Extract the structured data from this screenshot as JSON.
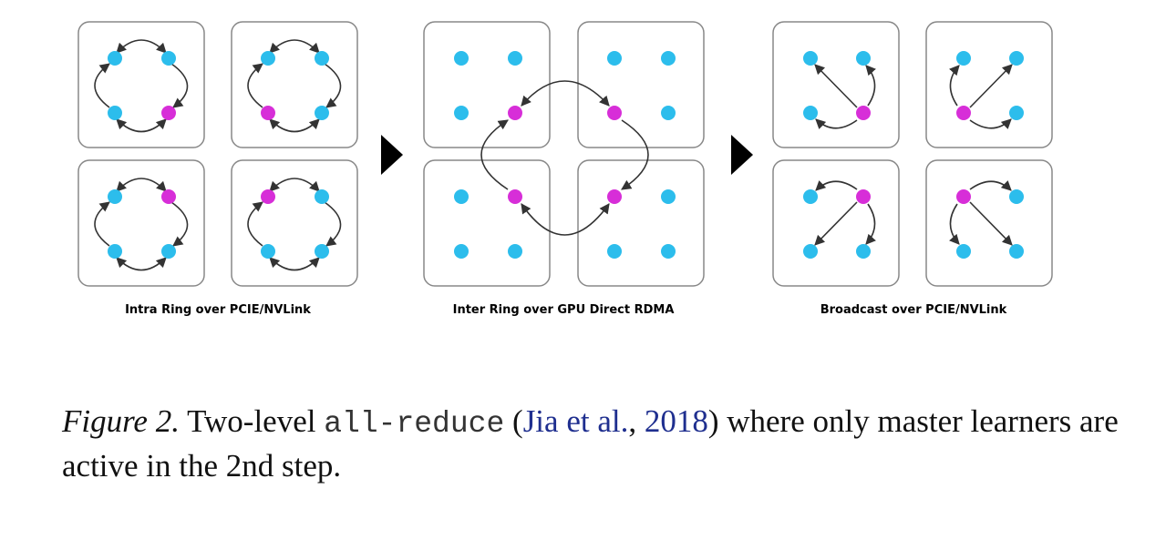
{
  "colors": {
    "worker_node": "#2cbdec",
    "master_node": "#d72ed8",
    "box_border": "#888888",
    "arrow": "#333333",
    "citation": "#1f2f8f"
  },
  "panels": [
    {
      "label": "Intra Ring over PCIE/NVLink"
    },
    {
      "label": "Inter Ring over GPU Direct RDMA"
    },
    {
      "label": "Broadcast over PCIE/NVLink"
    }
  ],
  "caption": {
    "figure_label": "Figure 2.",
    "text_1": " Two-level ",
    "code": "all-reduce",
    "text_2": " (",
    "cite_author": "Jia et al.",
    "text_3": ", ",
    "cite_year": "2018",
    "text_4": ") where only master learners are active in the 2nd step."
  }
}
